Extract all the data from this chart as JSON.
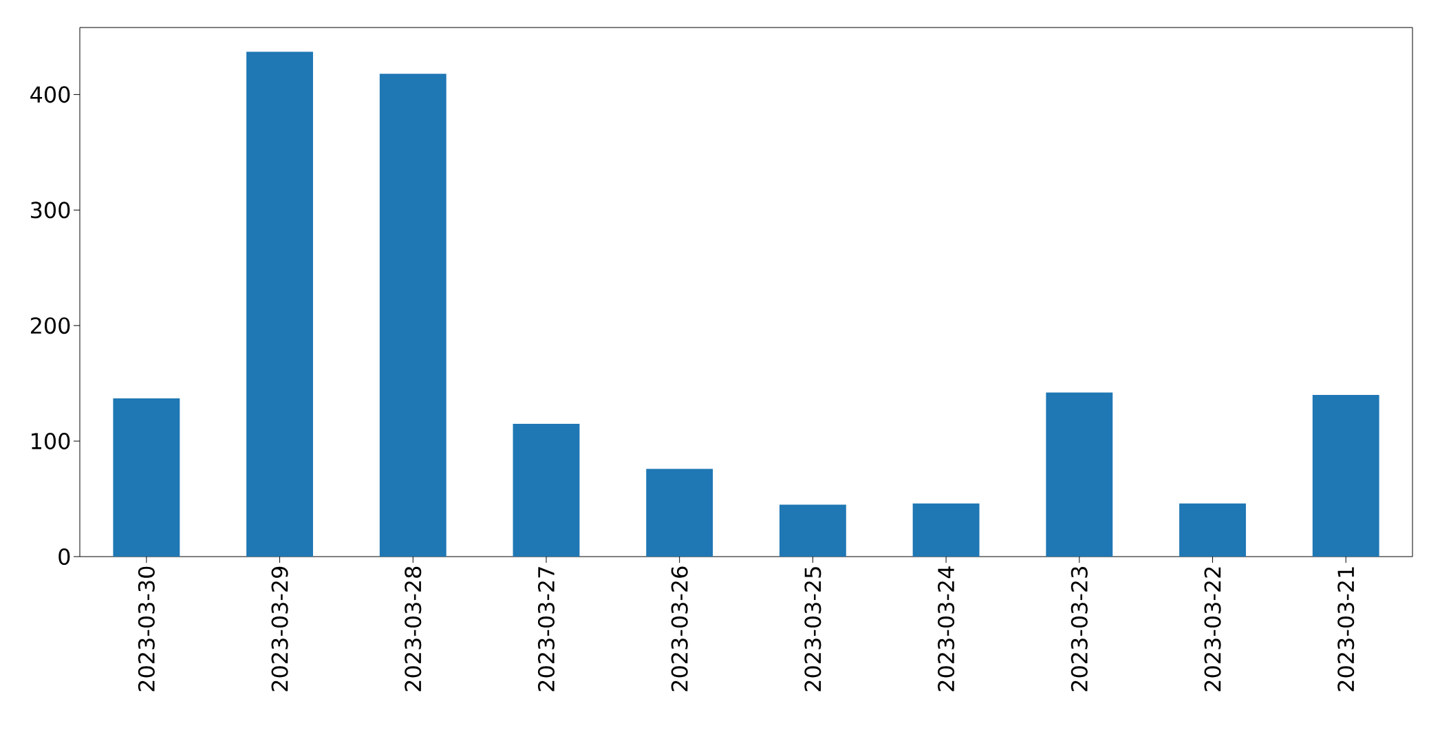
{
  "chart_data": {
    "type": "bar",
    "categories": [
      "2023-03-30",
      "2023-03-29",
      "2023-03-28",
      "2023-03-27",
      "2023-03-26",
      "2023-03-25",
      "2023-03-24",
      "2023-03-23",
      "2023-03-22",
      "2023-03-21"
    ],
    "values": [
      137,
      437,
      418,
      115,
      76,
      45,
      46,
      142,
      46,
      140
    ],
    "color": "#1f77b4",
    "ylim": [
      0,
      458
    ],
    "yticks": [
      0,
      100,
      200,
      300,
      400
    ]
  }
}
